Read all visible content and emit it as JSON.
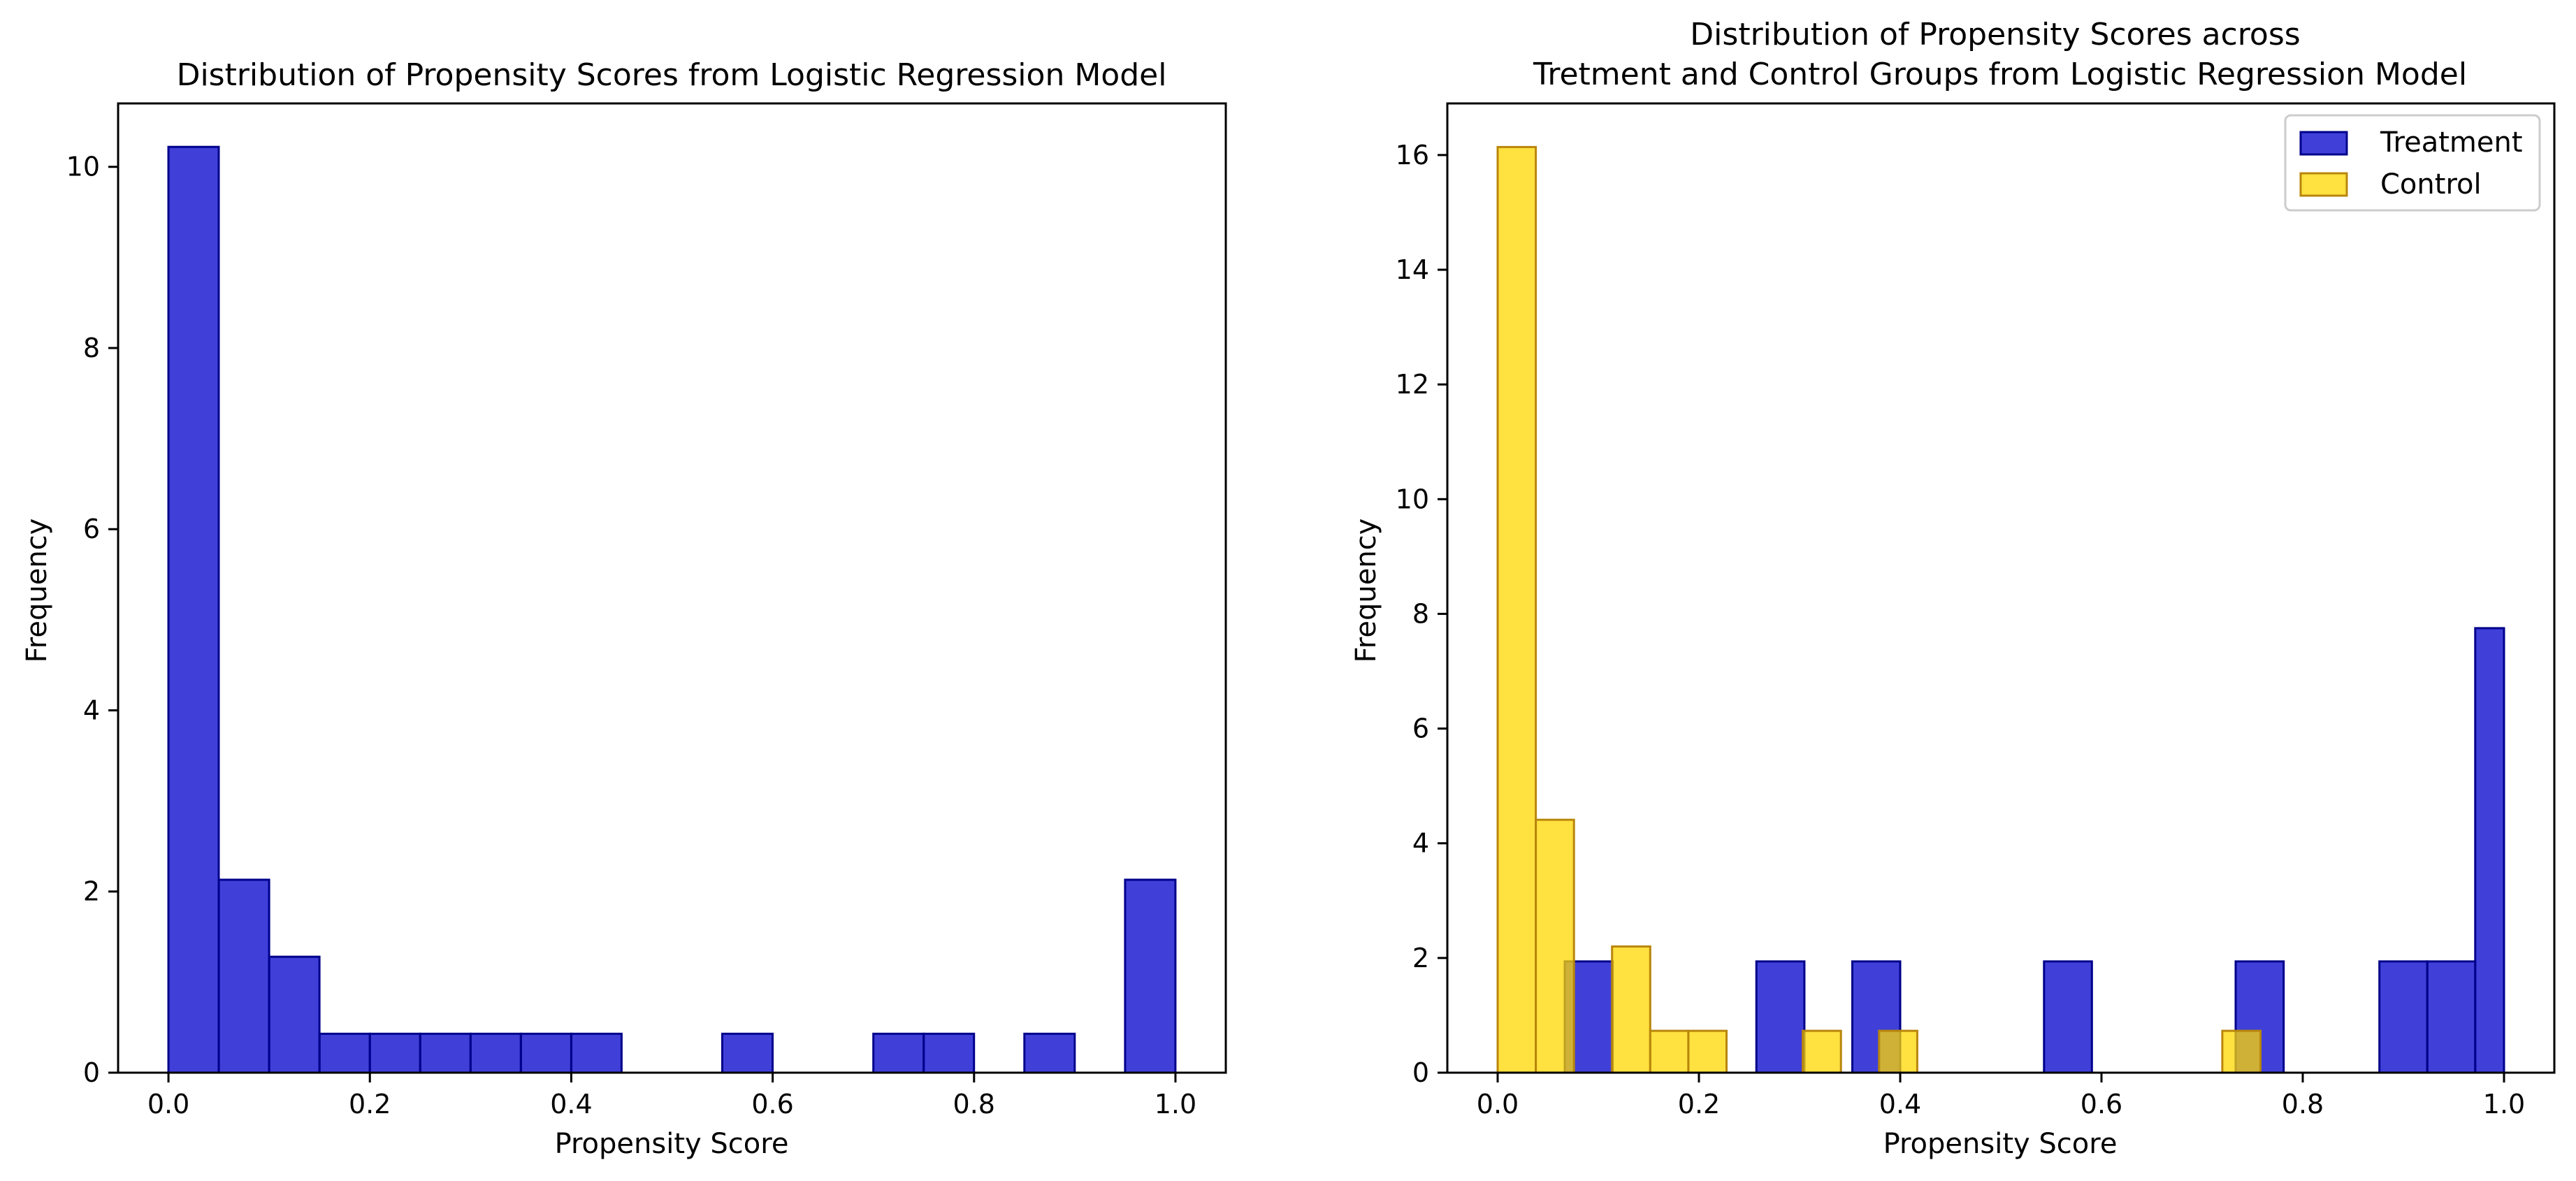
{
  "colors": {
    "treatment_fill": "#0000cc",
    "treatment_edge": "#00008b",
    "control_fill": "#ffd700",
    "control_edge": "#b8860b"
  },
  "chart_data": [
    {
      "type": "bar",
      "subtype": "histogram",
      "title": "Distribution of Propensity Scores from Logistic Regression Model",
      "xlabel": "Propensity Score",
      "ylabel": "Frequency",
      "xlim": [
        -0.05,
        1.05
      ],
      "ylim": [
        0,
        10.7
      ],
      "xticks": [
        "0.0",
        "0.2",
        "0.4",
        "0.6",
        "0.8",
        "1.0"
      ],
      "yticks": [
        "0",
        "2",
        "4",
        "6",
        "8",
        "10"
      ],
      "grid": false,
      "series": [
        {
          "color": "#0000cc",
          "bin_edges": [
            0.0,
            0.05,
            0.1,
            0.15,
            0.2,
            0.25,
            0.3,
            0.35,
            0.4,
            0.45,
            0.5,
            0.55,
            0.6,
            0.65,
            0.7,
            0.75,
            0.8,
            0.85,
            0.9,
            0.95,
            1.0
          ],
          "values": [
            10.22,
            2.13,
            1.28,
            0.43,
            0.43,
            0.43,
            0.43,
            0.43,
            0.43,
            0,
            0,
            0.43,
            0,
            0,
            0.43,
            0.43,
            0,
            0.43,
            0,
            2.13
          ]
        }
      ]
    },
    {
      "type": "bar",
      "subtype": "histogram",
      "title": "Distribution of Propensity Scores across\nTretment and Control Groups from Logistic Regression Model",
      "xlabel": "Propensity Score",
      "ylabel": "Frequency",
      "xlim": [
        -0.05,
        1.05
      ],
      "ylim": [
        0,
        16.9
      ],
      "xticks": [
        "0.0",
        "0.2",
        "0.4",
        "0.6",
        "0.8",
        "1.0"
      ],
      "yticks": [
        "0",
        "2",
        "4",
        "6",
        "8",
        "10",
        "12",
        "14",
        "16"
      ],
      "grid": false,
      "legend": "top-right",
      "series": [
        {
          "name": "Treatment",
          "color": "#0000cc",
          "bin_edges": [
            0.0667,
            0.1143,
            0.1619,
            0.2095,
            0.2571,
            0.3048,
            0.3524,
            0.4,
            0.4476,
            0.4952,
            0.5429,
            0.5905,
            0.6381,
            0.6857,
            0.7333,
            0.781,
            0.8286,
            0.8762,
            0.9238,
            0.9714,
            1.0
          ],
          "values": [
            1.94,
            0,
            0,
            0,
            1.94,
            0,
            1.94,
            0,
            0,
            0,
            1.94,
            0,
            0,
            0,
            1.94,
            0,
            0,
            1.94,
            1.94,
            7.75
          ]
        },
        {
          "name": "Control",
          "color": "#ffd700",
          "bin_edges": [
            0.0,
            0.0379,
            0.0758,
            0.1137,
            0.1516,
            0.1895,
            0.2274,
            0.2653,
            0.3032,
            0.3411,
            0.379,
            0.4169,
            0.4548,
            0.4927,
            0.5306,
            0.5685,
            0.6064,
            0.6443,
            0.6822,
            0.7201,
            0.758
          ],
          "values": [
            16.14,
            4.41,
            0,
            2.2,
            0.73,
            0.73,
            0,
            0,
            0.73,
            0,
            0.73,
            0,
            0,
            0,
            0,
            0,
            0,
            0,
            0,
            0.73
          ]
        }
      ]
    }
  ]
}
